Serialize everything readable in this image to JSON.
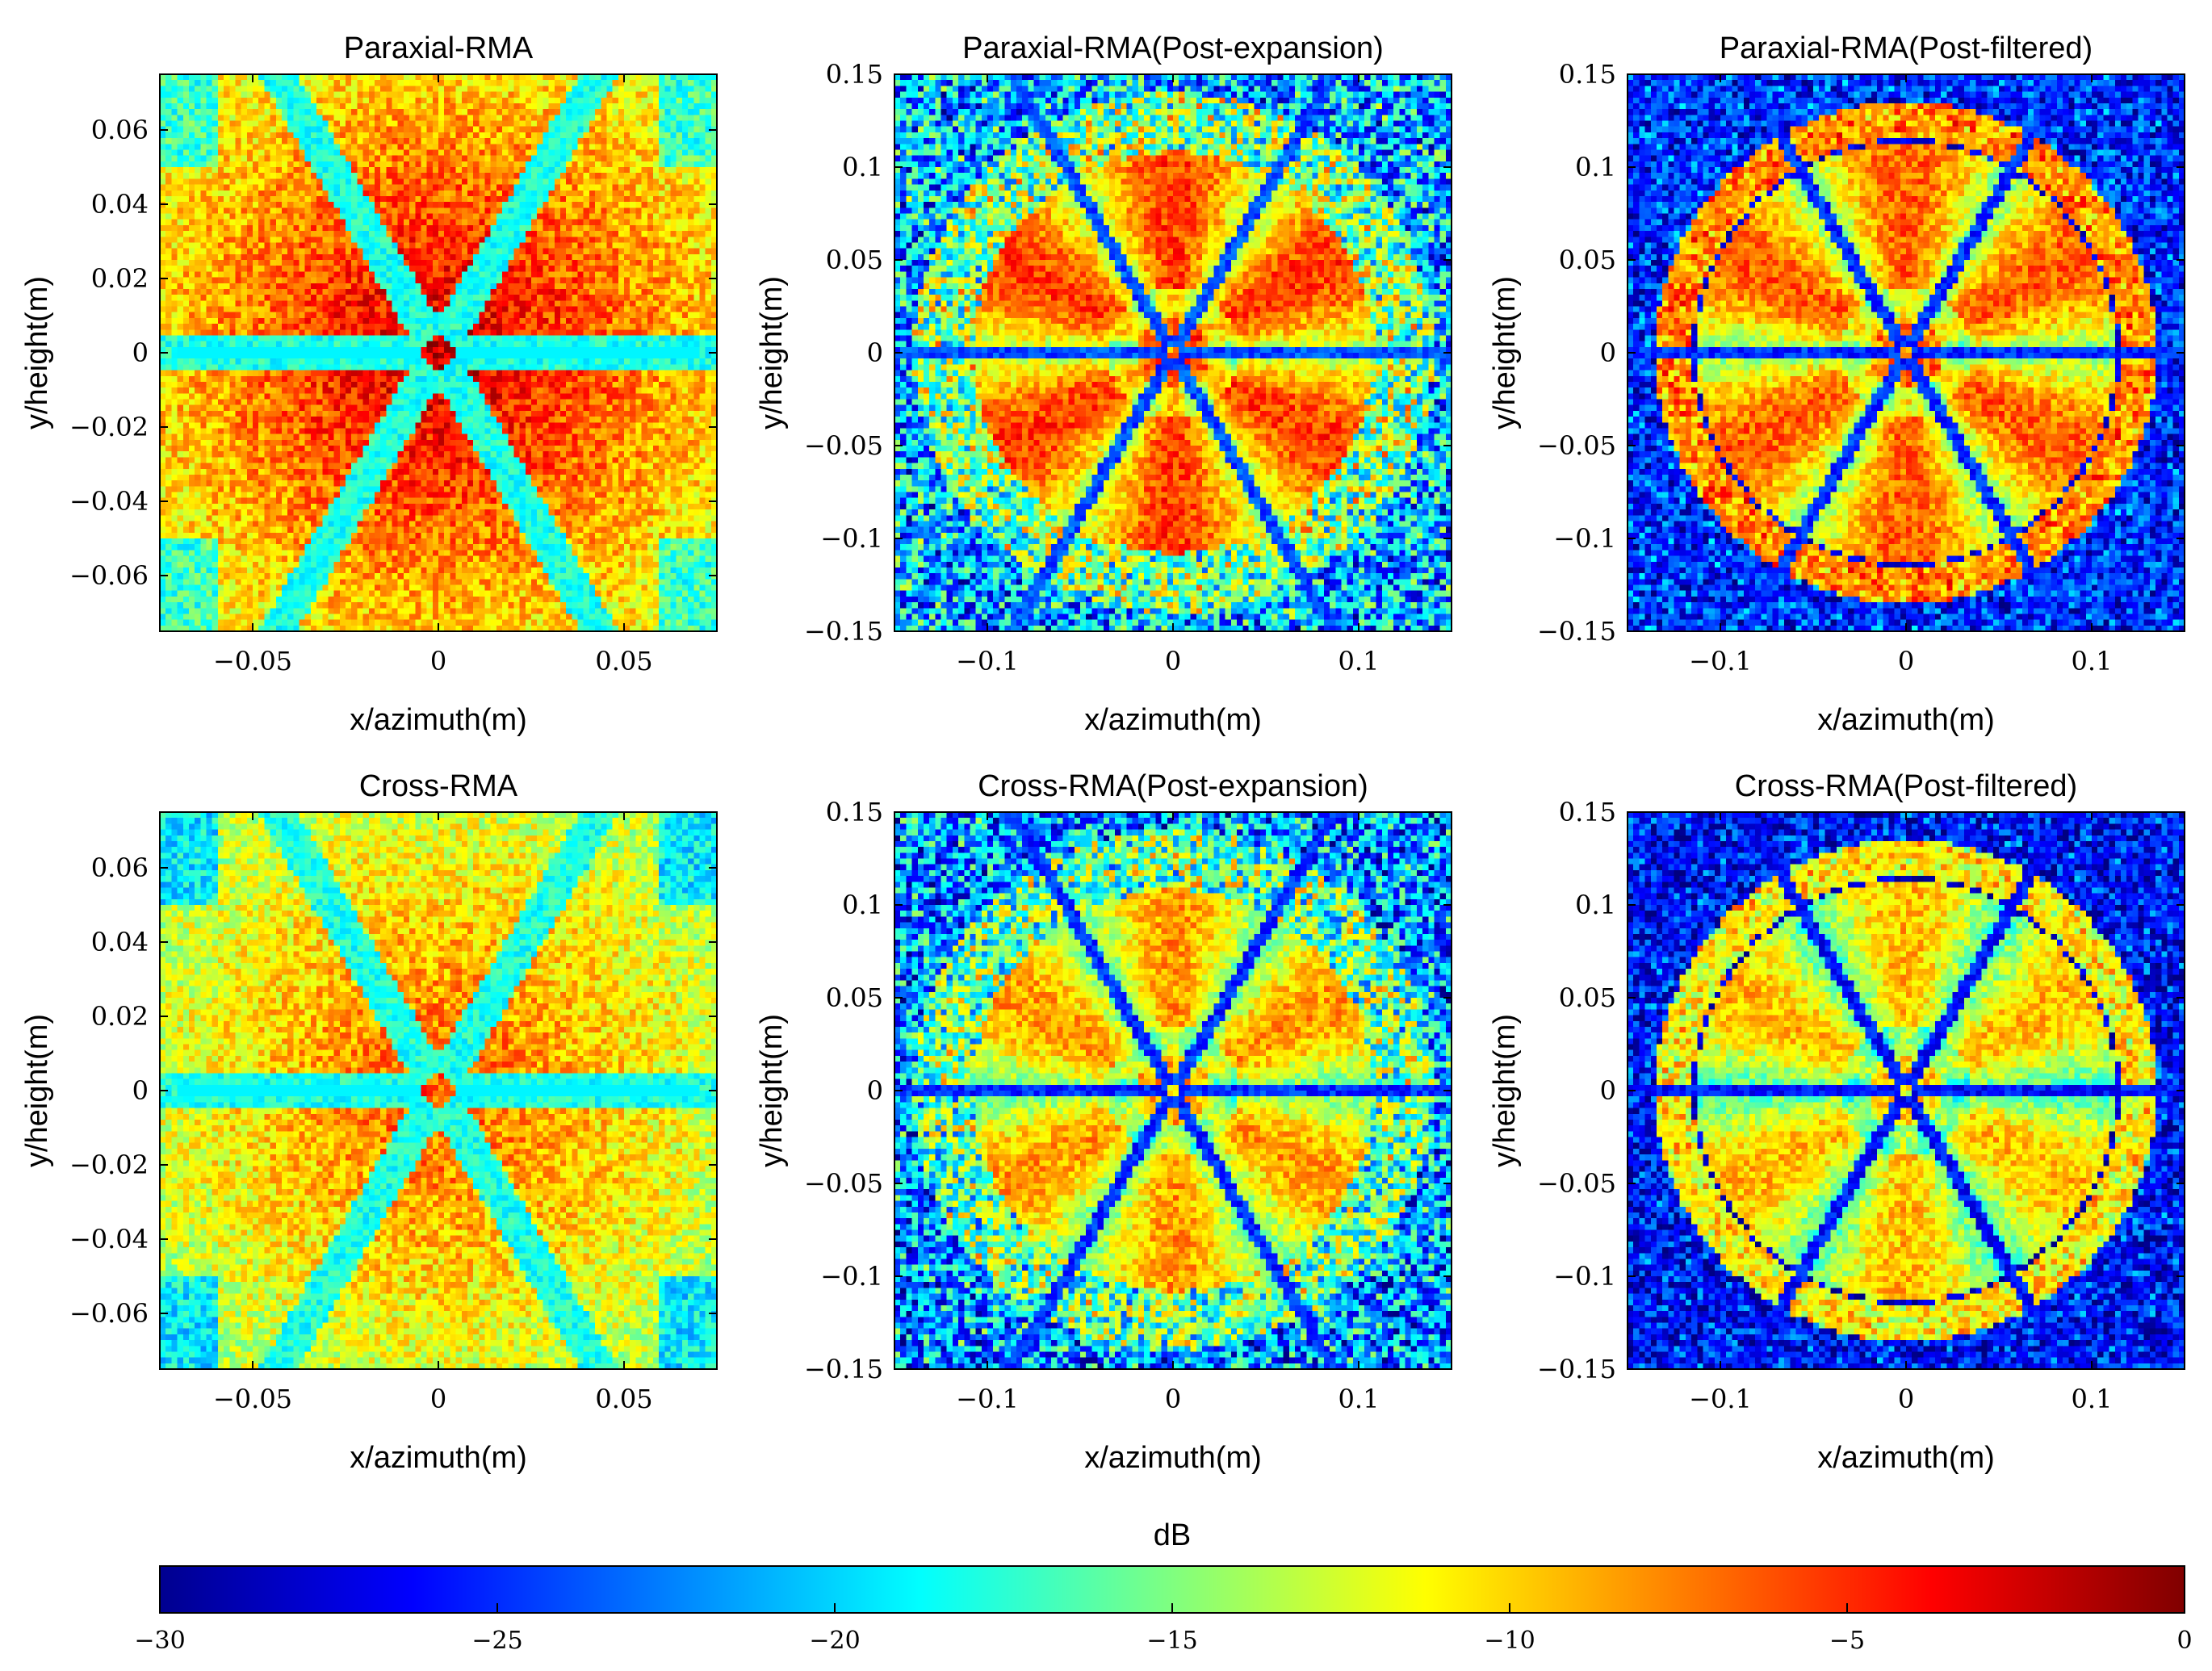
{
  "chart_data": [
    {
      "type": "heatmap",
      "title": "Paraxial-RMA",
      "xlabel": "x/azimuth(m)",
      "ylabel": "y/height(m)",
      "xlim": [
        -0.075,
        0.075
      ],
      "ylim": [
        -0.075,
        0.075
      ],
      "xticks": [
        -0.05,
        0,
        0.05
      ],
      "yticks": [
        -0.06,
        -0.04,
        -0.02,
        0,
        0.02,
        0.04,
        0.06
      ],
      "xtick_labels": [
        "−0.05",
        "0",
        "0.05"
      ],
      "ytick_labels": [
        "−0.06",
        "−0.04",
        "−0.02",
        "0",
        "0.02",
        "0.04",
        "0.06"
      ],
      "pattern": {
        "zoom": "near",
        "ring": false,
        "spoke_angles_deg": [
          0,
          60,
          120,
          180,
          240,
          300
        ],
        "peak_dB": -2,
        "floor_dB": -22
      }
    },
    {
      "type": "heatmap",
      "title": "Paraxial-RMA(Post-expansion)",
      "xlabel": "x/azimuth(m)",
      "ylabel": "y/height(m)",
      "xlim": [
        -0.15,
        0.15
      ],
      "ylim": [
        -0.15,
        0.15
      ],
      "xticks": [
        -0.1,
        0,
        0.1
      ],
      "yticks": [
        -0.15,
        -0.1,
        -0.05,
        0,
        0.05,
        0.1,
        0.15
      ],
      "xtick_labels": [
        "−0.1",
        "0",
        "0.1"
      ],
      "ytick_labels": [
        "−0.15",
        "−0.1",
        "−0.05",
        "0",
        "0.05",
        "0.1",
        "0.15"
      ],
      "pattern": {
        "zoom": "wide",
        "ring": false,
        "ring_radius_m": 0.12,
        "spoke_angles_deg": [
          0,
          60,
          120,
          180,
          240,
          300
        ],
        "peak_dB": -3,
        "floor_dB": -28
      }
    },
    {
      "type": "heatmap",
      "title": "Paraxial-RMA(Post-filtered)",
      "xlabel": "x/azimuth(m)",
      "ylabel": "y/height(m)",
      "xlim": [
        -0.15,
        0.15
      ],
      "ylim": [
        -0.15,
        0.15
      ],
      "xticks": [
        -0.1,
        0,
        0.1
      ],
      "yticks": [
        -0.15,
        -0.1,
        -0.05,
        0,
        0.05,
        0.1,
        0.15
      ],
      "xtick_labels": [
        "−0.1",
        "0",
        "0.1"
      ],
      "ytick_labels": [
        "−0.15",
        "−0.1",
        "−0.05",
        "0",
        "0.05",
        "0.1",
        "0.15"
      ],
      "pattern": {
        "zoom": "wide",
        "ring": true,
        "ring_radius_m": 0.125,
        "spoke_angles_deg": [
          0,
          60,
          120,
          180,
          240,
          300
        ],
        "peak_dB": -4,
        "floor_dB": -29
      }
    },
    {
      "type": "heatmap",
      "title": "Cross-RMA",
      "xlabel": "x/azimuth(m)",
      "ylabel": "y/height(m)",
      "xlim": [
        -0.075,
        0.075
      ],
      "ylim": [
        -0.075,
        0.075
      ],
      "xticks": [
        -0.05,
        0,
        0.05
      ],
      "yticks": [
        -0.06,
        -0.04,
        -0.02,
        0,
        0.02,
        0.04,
        0.06
      ],
      "xtick_labels": [
        "−0.05",
        "0",
        "0.05"
      ],
      "ytick_labels": [
        "−0.06",
        "−0.04",
        "−0.02",
        "0",
        "0.02",
        "0.04",
        "0.06"
      ],
      "pattern": {
        "zoom": "near",
        "ring": false,
        "spoke_angles_deg": [
          0,
          60,
          120,
          180,
          240,
          300
        ],
        "peak_dB": -6,
        "floor_dB": -22
      }
    },
    {
      "type": "heatmap",
      "title": "Cross-RMA(Post-expansion)",
      "xlabel": "x/azimuth(m)",
      "ylabel": "y/height(m)",
      "xlim": [
        -0.15,
        0.15
      ],
      "ylim": [
        -0.15,
        0.15
      ],
      "xticks": [
        -0.1,
        0,
        0.1
      ],
      "yticks": [
        -0.15,
        -0.1,
        -0.05,
        0,
        0.05,
        0.1,
        0.15
      ],
      "xtick_labels": [
        "−0.1",
        "0",
        "0.1"
      ],
      "ytick_labels": [
        "−0.15",
        "−0.1",
        "−0.05",
        "0",
        "0.05",
        "0.1",
        "0.15"
      ],
      "pattern": {
        "zoom": "wide",
        "ring": false,
        "ring_radius_m": 0.12,
        "spoke_angles_deg": [
          0,
          60,
          120,
          180,
          240,
          300
        ],
        "peak_dB": -6,
        "floor_dB": -29
      }
    },
    {
      "type": "heatmap",
      "title": "Cross-RMA(Post-filtered)",
      "xlabel": "x/azimuth(m)",
      "ylabel": "y/height(m)",
      "xlim": [
        -0.15,
        0.15
      ],
      "ylim": [
        -0.15,
        0.15
      ],
      "xticks": [
        -0.1,
        0,
        0.1
      ],
      "yticks": [
        -0.15,
        -0.1,
        -0.05,
        0,
        0.05,
        0.1,
        0.15
      ],
      "xtick_labels": [
        "−0.1",
        "0",
        "0.1"
      ],
      "ytick_labels": [
        "−0.15",
        "−0.1",
        "−0.05",
        "0",
        "0.05",
        "0.1",
        "0.15"
      ],
      "pattern": {
        "zoom": "wide",
        "ring": true,
        "ring_radius_m": 0.125,
        "spoke_angles_deg": [
          0,
          60,
          120,
          180,
          240,
          300
        ],
        "peak_dB": -7,
        "floor_dB": -30
      }
    }
  ],
  "colorbar": {
    "label": "dB",
    "colormap": "jet",
    "range": [
      -30,
      0
    ],
    "ticks": [
      -30,
      -25,
      -20,
      -15,
      -10,
      -5,
      0
    ],
    "tick_labels": [
      "−30",
      "−25",
      "−20",
      "−15",
      "−10",
      "−5",
      "0"
    ]
  }
}
